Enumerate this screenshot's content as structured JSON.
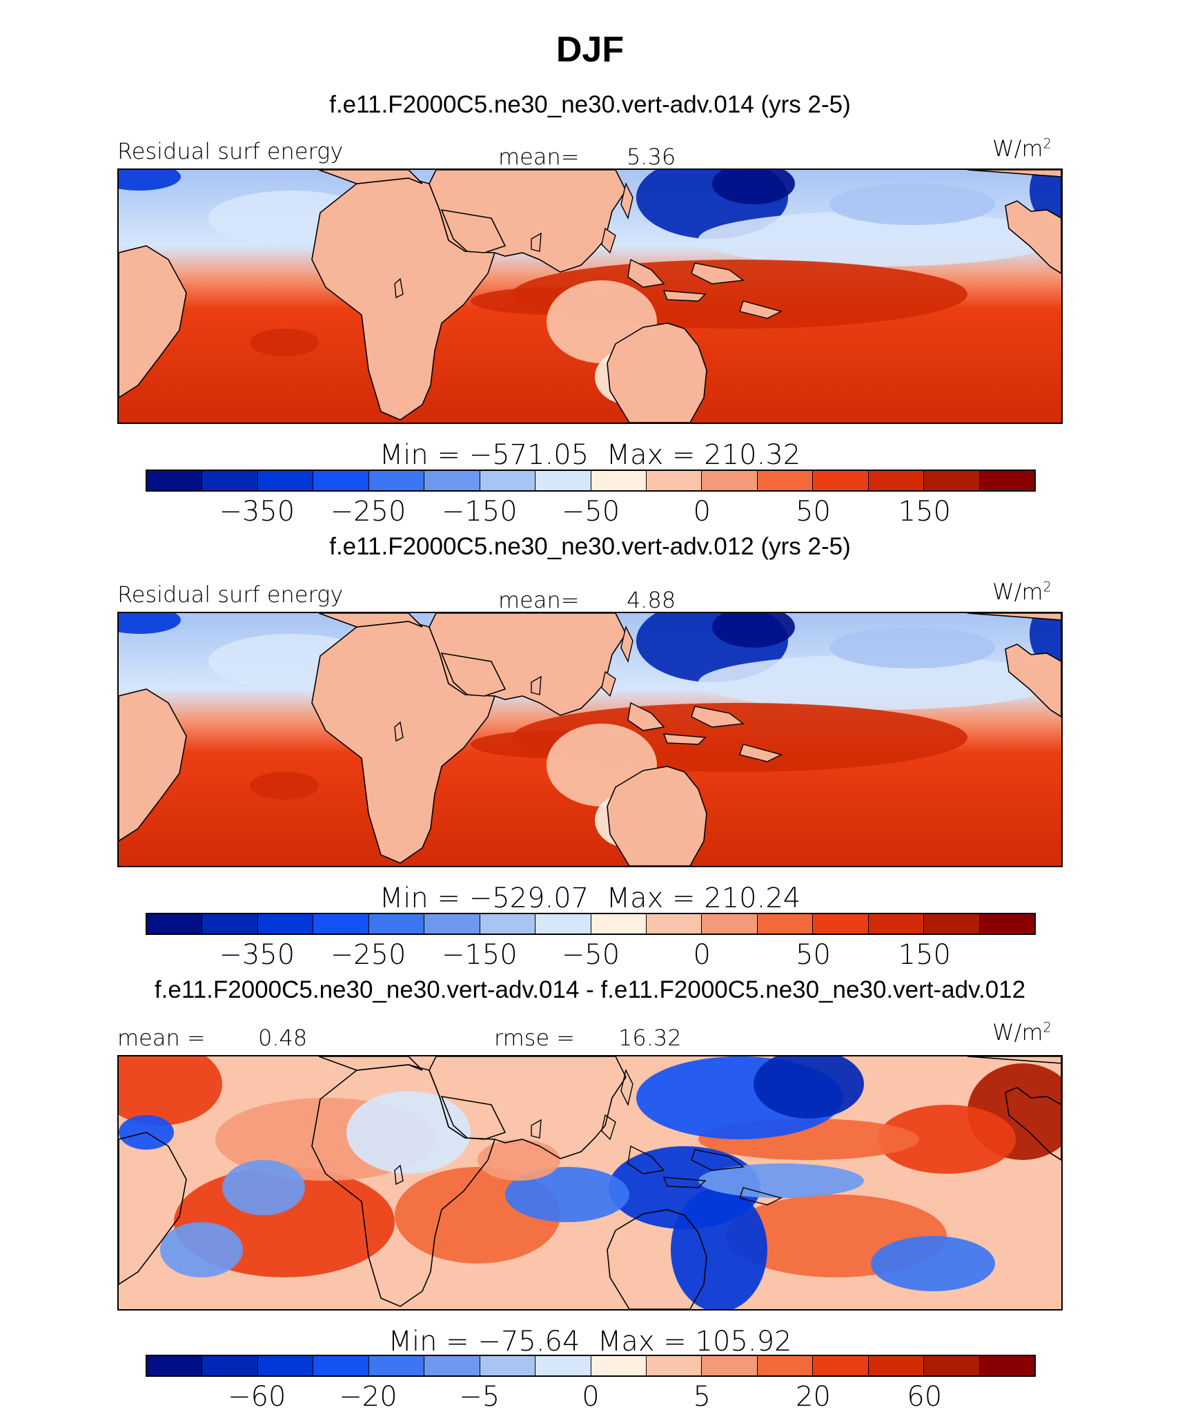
{
  "title": "DJF",
  "colors": {
    "ocean_pos": "#f1531f",
    "land_pos": "#f7b69a",
    "coast": "#000000",
    "palette_main": [
      "#000f85",
      "#0027b5",
      "#0237d9",
      "#1552f5",
      "#3c76f2",
      "#6c99ef",
      "#a8c4f4",
      "#d6e6fb",
      "#fff0e0",
      "#fbc5ab",
      "#f59a79",
      "#f3693a",
      "#ec3e13",
      "#d22b06",
      "#ad1b02",
      "#8a0000"
    ],
    "palette_diff": [
      "#000f85",
      "#0027b5",
      "#0237d9",
      "#1552f5",
      "#3c76f2",
      "#6c99ef",
      "#a8c4f4",
      "#d6e6fb",
      "#fff0e0",
      "#fbc5ab",
      "#f59a79",
      "#f3693a",
      "#ec3e13",
      "#d22b06",
      "#ad1b02",
      "#8a0000"
    ]
  },
  "chart_data": [
    {
      "type": "heatmap",
      "title": "f.e11.F2000C5.ne30_ne30.vert-adv.014 (yrs 2-5)",
      "variable": "Residual surf energy",
      "units": "W/m",
      "units_sup": "2",
      "left_label": "Residual surf energy",
      "mean_label": "mean=",
      "mean_value": "5.36",
      "min_label": "Min",
      "min": "−571.05",
      "max_label": "Max",
      "max": "210.32",
      "levels": [
        "−350",
        "−250",
        "−150",
        "−50",
        "0",
        "50",
        "150"
      ],
      "level_positions": [
        2,
        4,
        6,
        8,
        10,
        12,
        14
      ]
    },
    {
      "type": "heatmap",
      "title": "f.e11.F2000C5.ne30_ne30.vert-adv.012 (yrs 2-5)",
      "variable": "Residual surf energy",
      "units": "W/m",
      "units_sup": "2",
      "left_label": "Residual surf energy",
      "mean_label": "mean=",
      "mean_value": "4.88",
      "min_label": "Min",
      "min": "−529.07",
      "max_label": "Max",
      "max": "210.24",
      "levels": [
        "−350",
        "−250",
        "−150",
        "−50",
        "0",
        "50",
        "150"
      ],
      "level_positions": [
        2,
        4,
        6,
        8,
        10,
        12,
        14
      ]
    },
    {
      "type": "heatmap",
      "title": "f.e11.F2000C5.ne30_ne30.vert-adv.014 - f.e11.F2000C5.ne30_ne30.vert-adv.012",
      "units": "W/m",
      "units_sup": "2",
      "left_label": "mean =",
      "mean_value": "0.48",
      "rmse_label": "rmse =",
      "rmse_value": "16.32",
      "min_label": "Min",
      "min": "−75.64",
      "max_label": "Max",
      "max": "105.92",
      "levels": [
        "−60",
        "−20",
        "−5",
        "0",
        "5",
        "20",
        "60"
      ],
      "level_positions": [
        2,
        4,
        6,
        8,
        10,
        12,
        14
      ]
    }
  ]
}
